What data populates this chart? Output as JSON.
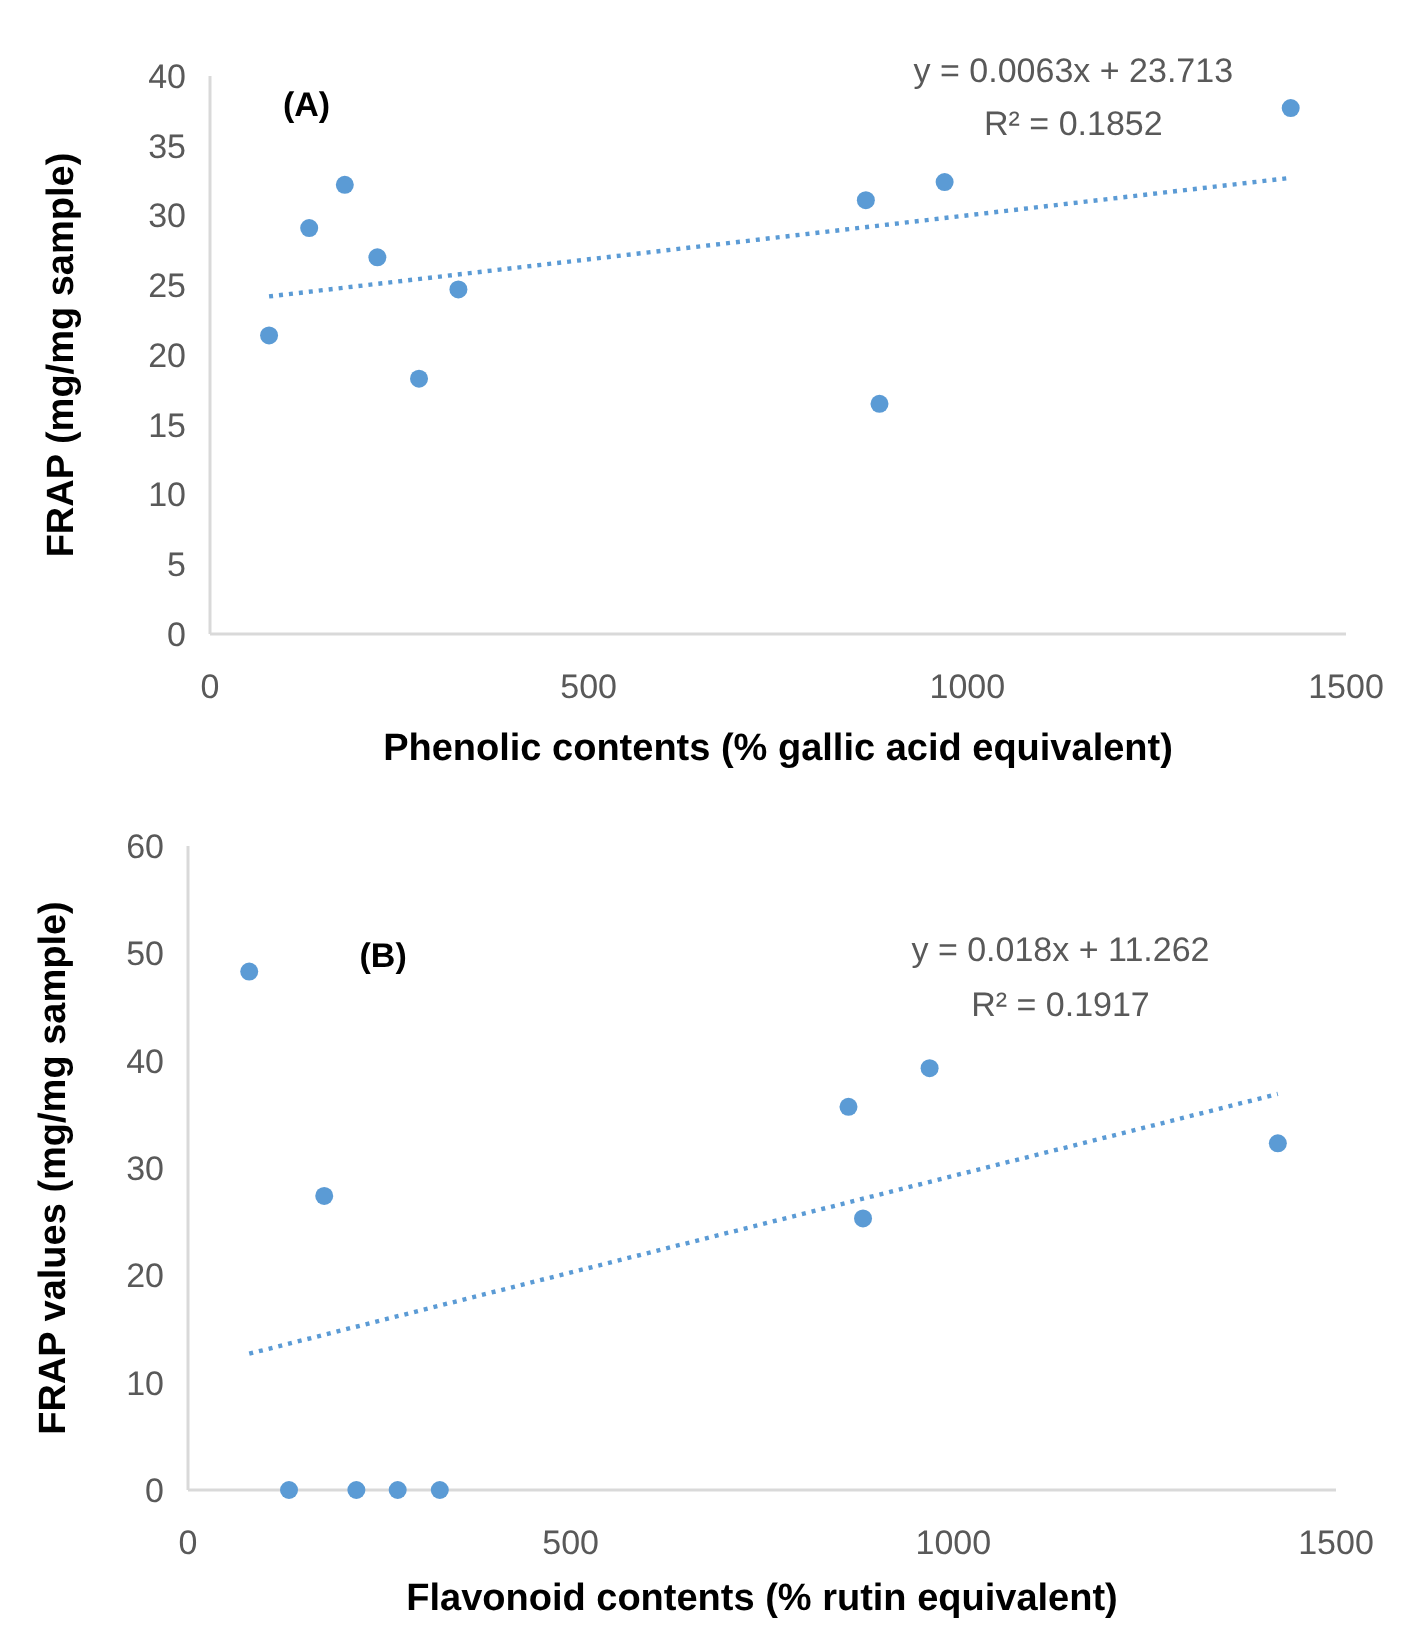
{
  "chart_data": [
    {
      "type": "scatter",
      "xlabel": "Phenolic contents (% gallic acid equivalent)",
      "ylabel": "FRAP (mg/mg sample)",
      "annotations": [
        "(A)",
        "y = 0.0063x + 23.713",
        "R² = 0.1852"
      ],
      "xlim": [
        0,
        1500
      ],
      "xticks": [
        0,
        500,
        1000,
        1500
      ],
      "ylim": [
        0,
        40
      ],
      "yticks": [
        0,
        5,
        10,
        15,
        20,
        25,
        30,
        35,
        40
      ],
      "grid": false,
      "marker": "circle",
      "series": [
        {
          "color": "#5b9bd5",
          "x": [
            78,
            131,
            178,
            221,
            276,
            328,
            866,
            884,
            970,
            1427
          ],
          "values": [
            21.4,
            29.1,
            32.2,
            27.0,
            18.3,
            24.7,
            31.1,
            16.5,
            32.4,
            37.7
          ]
        },
        {
          "type": "line",
          "color": "#5b9bd5",
          "line_style": "dotted",
          "marker": "none",
          "x": [
            78,
            1427
          ],
          "values": [
            24.2,
            32.7
          ]
        }
      ]
    },
    {
      "type": "scatter",
      "xlabel": "Flavonoid contents (% rutin equivalent)",
      "ylabel": "FRAP values (mg/mg sample)",
      "annotations": [
        "(B)",
        "y = 0.018x + 11.262",
        "R² = 0.1917"
      ],
      "xlim": [
        0,
        1500
      ],
      "xticks": [
        0,
        500,
        1000,
        1500
      ],
      "ylim": [
        0,
        60
      ],
      "yticks": [
        0,
        10,
        20,
        30,
        40,
        50,
        60
      ],
      "grid": false,
      "marker": "circle",
      "series": [
        {
          "color": "#5b9bd5",
          "x": [
            80,
            132,
            178,
            220,
            274,
            329,
            863,
            882,
            969,
            1424
          ],
          "values": [
            48.3,
            0,
            27.4,
            0,
            0,
            0,
            35.7,
            25.3,
            39.3,
            32.3
          ]
        },
        {
          "type": "line",
          "color": "#5b9bd5",
          "line_style": "dotted",
          "marker": "none",
          "x": [
            80,
            1424
          ],
          "values": [
            12.7,
            36.9
          ]
        }
      ]
    }
  ]
}
